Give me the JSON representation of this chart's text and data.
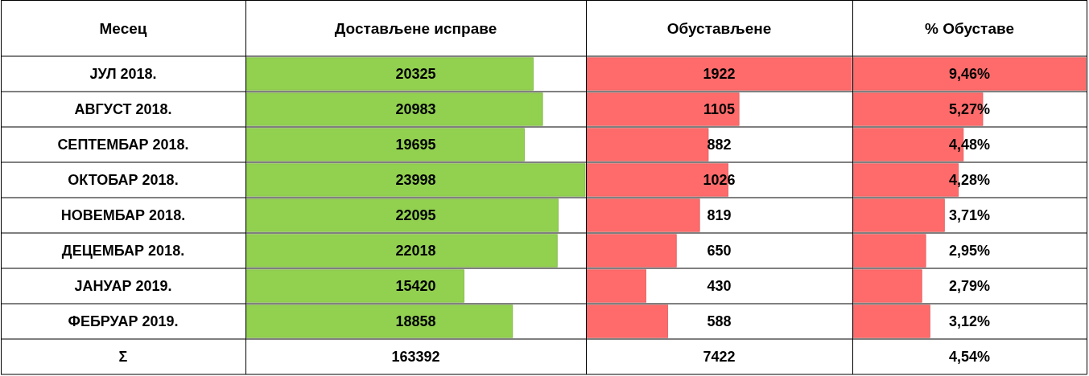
{
  "chart_data": [
    {
      "type": "bar",
      "orientation": "horizontal",
      "title": "Достављене исправе",
      "ylabel": "Месец",
      "categories": [
        "ЈУЛ 2018.",
        "АВГУСТ 2018.",
        "СЕПТЕМБАР 2018.",
        "ОКТОБАР 2018.",
        "НОВЕМБАР 2018.",
        "ДЕЦЕМБАР 2018.",
        "ЈАНУАР 2019.",
        "ФЕБРУАР 2019."
      ],
      "values": [
        20325,
        20983,
        19695,
        23998,
        22095,
        22018,
        15420,
        18858
      ],
      "color": "#92d050",
      "xlim": [
        0,
        23998
      ],
      "data_labels": true,
      "tick_labels": "y",
      "annotations": [
        "Σ",
        "163392"
      ]
    },
    {
      "type": "bar",
      "orientation": "horizontal",
      "title": "Обустављене",
      "values": [
        1922,
        1105,
        882,
        1026,
        819,
        650,
        430,
        588
      ],
      "color": "#ff6b6b",
      "xlim": [
        0,
        1922
      ],
      "data_labels": true,
      "tick_labels": false,
      "annotations": [
        "7422"
      ]
    },
    {
      "type": "bar",
      "orientation": "horizontal",
      "title": "% Обуставе",
      "values": [
        9.46,
        5.27,
        4.48,
        4.28,
        3.71,
        2.95,
        2.79,
        3.12
      ],
      "value_labels": [
        "9,46%",
        "5,27%",
        "4,48%",
        "4,28%",
        "3,71%",
        "2,95%",
        "2,79%",
        "3,12%"
      ],
      "color": "#ff6b6b",
      "xlim": [
        0,
        9.46
      ],
      "tick_labels": false,
      "annotations": [
        "4,54%"
      ]
    }
  ]
}
